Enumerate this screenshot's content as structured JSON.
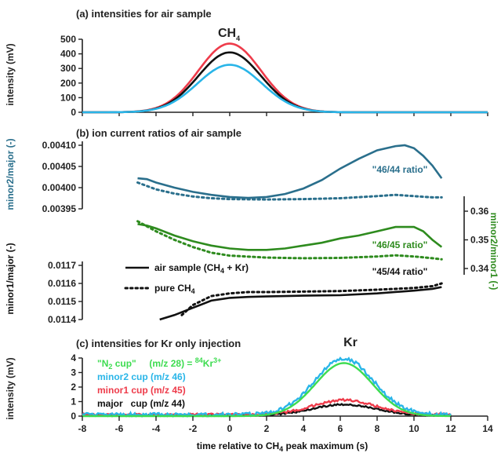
{
  "figure": {
    "xlabel_pre": "time relative to CH",
    "xlabel_sub": "4",
    "xlabel_post": " peak maximum (s)"
  },
  "chart_data": [
    {
      "panel": "a",
      "type": "line",
      "title": "(a) intensities for air sample",
      "peak_label": "CH",
      "peak_label_sub": "4",
      "ylabel": "intensity (mV)",
      "xlim": [
        -8,
        14
      ],
      "ylim": [
        0,
        500
      ],
      "xticks": [
        -8,
        -6,
        -4,
        -2,
        0,
        2,
        4,
        6,
        8,
        10,
        12,
        14
      ],
      "yticks": [
        "0",
        "100",
        "200",
        "300",
        "400",
        "500"
      ],
      "grid": false,
      "series": [
        {
          "color": "#ee3b4a",
          "model": "gaussian",
          "center": 0.0,
          "sigma": 1.7,
          "amplitude": 470,
          "x_range": [
            -8,
            14
          ]
        },
        {
          "color": "#111111",
          "model": "gaussian",
          "center": 0.0,
          "sigma": 1.7,
          "amplitude": 410,
          "x_range": [
            -8,
            14
          ]
        },
        {
          "color": "#29b5e8",
          "model": "gaussian",
          "center": 0.0,
          "sigma": 1.75,
          "amplitude": 325,
          "x_range": [
            -8,
            14
          ]
        }
      ]
    },
    {
      "panel": "b",
      "type": "line",
      "title": "(b) ion current ratios of air sample",
      "xlim": [
        -8,
        14
      ],
      "legend": {
        "position": "left",
        "entries": [
          {
            "label_pre": "air sample (CH",
            "label_sub": "4",
            "label_post": " + Kr)",
            "style": "solid"
          },
          {
            "label_pre": "pure CH",
            "label_sub": "4",
            "label_post": "",
            "style": "dotted"
          }
        ]
      },
      "axes": [
        {
          "id": "minor2_major",
          "side": "left",
          "label": "minor2/major (-)",
          "color": "#2a6f8c",
          "ylim": [
            0.00395,
            0.0041
          ],
          "yticks": [
            "0.00395",
            "0.00400",
            "0.00405",
            "0.00410"
          ]
        },
        {
          "id": "minor2_minor1",
          "side": "right",
          "label": "minor2/minor1 (-)",
          "color": "#2e8b1e",
          "ylim": [
            0.34,
            0.36
          ],
          "yticks": [
            "0.34",
            "0.35",
            "0.36"
          ]
        },
        {
          "id": "minor1_major",
          "side": "left",
          "label": "minor1/major (-)",
          "color": "#111111",
          "ylim": [
            0.0114,
            0.0117
          ],
          "yticks": [
            "0.0114",
            "0.0115",
            "0.0116",
            "0.0117"
          ]
        }
      ],
      "series": [
        {
          "name": "46/44 ratio",
          "axis": "minor2_major",
          "color": "#2a6f8c",
          "style": "solid",
          "x": [
            -5.0,
            -4.5,
            -4.0,
            -3.0,
            -2.0,
            -1.0,
            0.0,
            1.0,
            2.0,
            3.0,
            4.0,
            5.0,
            6.0,
            7.0,
            8.0,
            9.0,
            9.5,
            10.0,
            10.5,
            11.0,
            11.5
          ],
          "y": [
            0.004022,
            0.00402,
            0.004012,
            0.004,
            0.00399,
            0.003983,
            0.003978,
            0.003976,
            0.003978,
            0.003985,
            0.003998,
            0.004018,
            0.004045,
            0.004068,
            0.004088,
            0.004098,
            0.0041,
            0.004093,
            0.004075,
            0.004052,
            0.004022
          ]
        },
        {
          "name": "46/44 ratio",
          "axis": "minor2_major",
          "color": "#2a6f8c",
          "style": "dotted",
          "x": [
            -5.0,
            -4.0,
            -3.0,
            -2.0,
            -1.0,
            0.0,
            2.0,
            4.0,
            6.0,
            8.0,
            9.0,
            10.0,
            11.0,
            11.5
          ],
          "y": [
            0.004012,
            0.003996,
            0.003986,
            0.003979,
            0.003975,
            0.003973,
            0.003972,
            0.003973,
            0.003975,
            0.00398,
            0.003983,
            0.00398,
            0.003977,
            0.003977
          ]
        },
        {
          "name": "46/45 ratio",
          "axis": "minor2_minor1",
          "color": "#2e8b1e",
          "style": "solid",
          "x": [
            -5.0,
            -4.5,
            -4.0,
            -3.0,
            -2.0,
            -1.0,
            0.0,
            1.0,
            2.0,
            3.0,
            4.0,
            5.0,
            6.0,
            7.0,
            8.0,
            9.0,
            10.0,
            10.5,
            11.0,
            11.5
          ],
          "y": [
            0.3555,
            0.355,
            0.354,
            0.3515,
            0.3495,
            0.348,
            0.347,
            0.3465,
            0.3465,
            0.347,
            0.348,
            0.349,
            0.3505,
            0.3515,
            0.353,
            0.3545,
            0.3545,
            0.353,
            0.35,
            0.3475
          ]
        },
        {
          "name": "46/45 ratio",
          "axis": "minor2_minor1",
          "color": "#2e8b1e",
          "style": "dotted",
          "x": [
            -5.0,
            -4.0,
            -3.0,
            -2.0,
            -1.0,
            0.0,
            2.0,
            4.0,
            6.0,
            8.0,
            9.0,
            10.0,
            11.0,
            11.5
          ],
          "y": [
            0.3565,
            0.353,
            0.35,
            0.3475,
            0.3455,
            0.3445,
            0.3438,
            0.3436,
            0.3437,
            0.3442,
            0.3446,
            0.3442,
            0.3436,
            0.3432
          ]
        },
        {
          "name": "45/44 ratio",
          "axis": "minor1_major",
          "color": "#111111",
          "style": "solid",
          "x": [
            -3.8,
            -3.0,
            -2.0,
            -1.0,
            0.0,
            1.0,
            2.0,
            4.0,
            6.0,
            8.0,
            10.0,
            11.0,
            11.5
          ],
          "y": [
            0.0114,
            0.011425,
            0.011465,
            0.011505,
            0.01152,
            0.011525,
            0.011528,
            0.011532,
            0.011535,
            0.011545,
            0.01156,
            0.01157,
            0.01158
          ]
        },
        {
          "name": "45/44 ratio",
          "axis": "minor1_major",
          "color": "#111111",
          "style": "dotted",
          "x": [
            -2.6,
            -2.0,
            -1.0,
            0.0,
            1.0,
            2.0,
            4.0,
            6.0,
            8.0,
            10.0,
            11.0,
            11.5
          ],
          "y": [
            0.011425,
            0.01148,
            0.01153,
            0.011545,
            0.011552,
            0.011552,
            0.011555,
            0.011558,
            0.011565,
            0.011575,
            0.011585,
            0.0116
          ]
        }
      ],
      "annotations": [
        "\"46/44 ratio\"",
        "\"46/45 ratio\"",
        "\"45/44 ratio\""
      ]
    },
    {
      "panel": "c",
      "type": "line",
      "title": "(c) intensities for Kr only injection",
      "peak_label": "Kr",
      "ylabel": "intensity (mV)",
      "xlim": [
        -8,
        14
      ],
      "ylim": [
        0,
        4
      ],
      "xticks": [
        -8,
        -6,
        -4,
        -2,
        0,
        2,
        4,
        6,
        8,
        10,
        12,
        14
      ],
      "yticks": [
        "0",
        "1",
        "2",
        "3",
        "4"
      ],
      "grid": false,
      "legend_lines": [
        {
          "text": "\"N",
          "sub": "2",
          "text2": " cup\"     (m/z 28) = ",
          "sup": "84",
          "text3": "Kr",
          "sup2": "3+",
          "color": "#3ddc50"
        },
        {
          "text": "minor2 cup (m/z 46)",
          "color": "#29b5e8"
        },
        {
          "text": "minor1 cup (m/z 45)",
          "color": "#ee3b4a"
        },
        {
          "text": "major   cup (m/z 44)",
          "color": "#111111"
        }
      ],
      "series": [
        {
          "name": "\"N2 cup\"",
          "color": "#3ddc50",
          "model": "gaussian",
          "center": 6.2,
          "sigma": 1.55,
          "amplitude": 3.65,
          "baseline": 0.0,
          "noise": 0.0,
          "x_range": [
            -8,
            12
          ]
        },
        {
          "name": "minor2 cup (m/z 46)",
          "color": "#29b5e8",
          "model": "gaussian",
          "center": 6.2,
          "sigma": 1.6,
          "amplitude": 3.85,
          "baseline": 0.1,
          "noise": 0.12,
          "x_range": [
            -8,
            12
          ]
        },
        {
          "name": "minor1 cup (m/z 45)",
          "color": "#ee3b4a",
          "model": "gaussian",
          "center": 6.2,
          "sigma": 1.7,
          "amplitude": 1.0,
          "baseline": 0.1,
          "noise": 0.08,
          "x_range": [
            -8,
            12
          ]
        },
        {
          "name": "major   cup (m/z 44)",
          "color": "#111111",
          "model": "gaussian",
          "center": 6.2,
          "sigma": 1.7,
          "amplitude": 0.75,
          "baseline": 0.05,
          "noise": 0.05,
          "x_range": [
            -8,
            12
          ]
        }
      ]
    }
  ]
}
